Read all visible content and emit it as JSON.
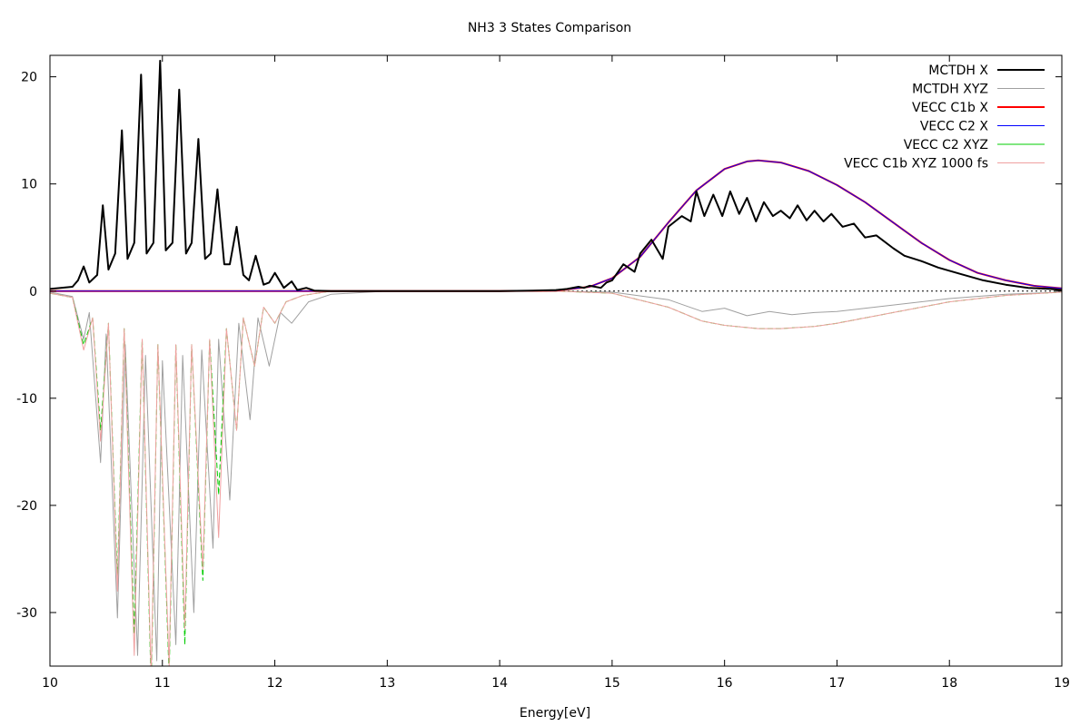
{
  "chart_data": {
    "type": "line",
    "title": "NH3 3 States Comparison",
    "xlabel": "Energy[eV]",
    "ylabel": "",
    "xlim": [
      10,
      19
    ],
    "ylim": [
      -35,
      22
    ],
    "xticks": [
      "10",
      "11",
      "12",
      "13",
      "14",
      "15",
      "16",
      "17",
      "18",
      "19"
    ],
    "yticks": [
      "20",
      "10",
      "0",
      "-10",
      "-20",
      "-30"
    ],
    "ytick_values": [
      20,
      10,
      0,
      -10,
      -20,
      -30
    ],
    "xtick_values": [
      10,
      11,
      12,
      13,
      14,
      15,
      16,
      17,
      18,
      19
    ],
    "legend_position": "top-right",
    "series": [
      {
        "name": "MCTDH X",
        "color": "#000000",
        "x": [
          10.0,
          10.2,
          10.25,
          10.3,
          10.35,
          10.42,
          10.47,
          10.52,
          10.58,
          10.64,
          10.69,
          10.75,
          10.81,
          10.86,
          10.92,
          10.98,
          11.03,
          11.09,
          11.15,
          11.21,
          11.26,
          11.32,
          11.38,
          11.43,
          11.49,
          11.55,
          11.6,
          11.66,
          11.72,
          11.77,
          11.83,
          11.9,
          11.95,
          12.0,
          12.08,
          12.15,
          12.2,
          12.28,
          12.35,
          12.5,
          13.0,
          14.0,
          14.3,
          14.5,
          14.6,
          14.7,
          14.75,
          14.8,
          14.9,
          14.95,
          15.0,
          15.1,
          15.2,
          15.25,
          15.35,
          15.45,
          15.5,
          15.62,
          15.7,
          15.75,
          15.82,
          15.9,
          15.98,
          16.05,
          16.13,
          16.2,
          16.28,
          16.35,
          16.43,
          16.5,
          16.58,
          16.65,
          16.73,
          16.8,
          16.88,
          16.95,
          17.05,
          17.15,
          17.25,
          17.35,
          17.5,
          17.6,
          17.75,
          17.9,
          18.1,
          18.3,
          18.5,
          18.7,
          18.9,
          19.0
        ],
        "y": [
          0.2,
          0.4,
          1.0,
          2.3,
          0.8,
          1.5,
          8.0,
          2.0,
          3.5,
          15.0,
          3.0,
          4.5,
          20.2,
          3.5,
          4.5,
          21.5,
          3.8,
          4.5,
          18.8,
          3.5,
          4.5,
          14.2,
          3.0,
          3.5,
          9.5,
          2.5,
          2.5,
          6.0,
          1.5,
          1.0,
          3.3,
          0.6,
          0.8,
          1.7,
          0.3,
          0.9,
          0.1,
          0.3,
          0.05,
          0.0,
          0.0,
          0.0,
          0.05,
          0.1,
          0.2,
          0.4,
          0.3,
          0.5,
          0.3,
          0.8,
          1.0,
          2.5,
          1.8,
          3.5,
          4.8,
          3.0,
          6.0,
          7.0,
          6.5,
          9.3,
          7.0,
          9.0,
          7.0,
          9.3,
          7.2,
          8.7,
          6.5,
          8.3,
          7.0,
          7.5,
          6.8,
          8.0,
          6.6,
          7.5,
          6.5,
          7.2,
          6.0,
          6.3,
          5.0,
          5.2,
          4.0,
          3.3,
          2.8,
          2.2,
          1.6,
          1.0,
          0.6,
          0.3,
          0.2,
          0.1
        ]
      },
      {
        "name": "MCTDH XYZ",
        "color": "#a0a0a0",
        "x": [
          10.0,
          10.2,
          10.3,
          10.35,
          10.45,
          10.5,
          10.6,
          10.67,
          10.78,
          10.85,
          10.95,
          11.0,
          11.12,
          11.18,
          11.28,
          11.35,
          11.45,
          11.5,
          11.6,
          11.68,
          11.78,
          11.85,
          11.95,
          12.05,
          12.15,
          12.3,
          12.5,
          13.0,
          14.5,
          15.0,
          15.5,
          15.8,
          16.0,
          16.2,
          16.4,
          16.6,
          16.8,
          17.0,
          17.5,
          18.0,
          18.5,
          19.0
        ],
        "y": [
          -0.1,
          -0.5,
          -4.5,
          -2.0,
          -16.0,
          -4.0,
          -30.5,
          -5.0,
          -34.0,
          -6.0,
          -34.5,
          -6.5,
          -33.0,
          -6.0,
          -30.0,
          -5.5,
          -24.0,
          -4.5,
          -19.5,
          -3.0,
          -12.0,
          -2.5,
          -7.0,
          -2.0,
          -3.0,
          -1.0,
          -0.3,
          0.0,
          0.0,
          -0.1,
          -0.8,
          -1.9,
          -1.6,
          -2.3,
          -1.9,
          -2.2,
          -2.0,
          -1.9,
          -1.3,
          -0.7,
          -0.3,
          -0.1
        ]
      },
      {
        "name": "VECC C1b X",
        "color": "#ff0000",
        "x": [
          10.0,
          12.0,
          13.0,
          14.0,
          14.5,
          14.8,
          15.0,
          15.25,
          15.5,
          15.75,
          16.0,
          16.2,
          16.3,
          16.5,
          16.75,
          17.0,
          17.25,
          17.5,
          17.75,
          18.0,
          18.25,
          18.5,
          18.75,
          19.0
        ],
        "y": [
          0.0,
          0.0,
          0.0,
          0.0,
          0.05,
          0.4,
          1.2,
          3.2,
          6.4,
          9.4,
          11.4,
          12.1,
          12.2,
          12.0,
          11.2,
          9.9,
          8.3,
          6.4,
          4.5,
          2.9,
          1.7,
          1.0,
          0.5,
          0.25
        ]
      },
      {
        "name": "VECC C2 X",
        "color": "#0000ff",
        "x": [
          10.0,
          12.0,
          13.0,
          14.0,
          14.5,
          14.8,
          15.0,
          15.25,
          15.5,
          15.75,
          16.0,
          16.2,
          16.3,
          16.5,
          16.75,
          17.0,
          17.25,
          17.5,
          17.75,
          18.0,
          18.25,
          18.5,
          18.75,
          19.0
        ],
        "y": [
          0.0,
          0.0,
          0.0,
          0.0,
          0.05,
          0.4,
          1.2,
          3.2,
          6.4,
          9.4,
          11.4,
          12.1,
          12.2,
          12.0,
          11.2,
          9.9,
          8.3,
          6.4,
          4.5,
          2.9,
          1.7,
          1.0,
          0.5,
          0.25
        ]
      },
      {
        "name": "VECC C2 XYZ",
        "color": "#00cc00",
        "x": [
          10.0,
          10.2,
          10.3,
          10.38,
          10.45,
          10.52,
          10.6,
          10.66,
          10.75,
          10.82,
          10.9,
          10.96,
          11.06,
          11.12,
          11.2,
          11.26,
          11.36,
          11.42,
          11.5,
          11.57,
          11.66,
          11.72,
          11.82,
          11.9,
          12.0,
          12.1,
          12.25,
          12.5,
          13.0,
          14.5,
          15.0,
          15.5,
          15.8,
          16.0,
          16.3,
          16.5,
          16.8,
          17.0,
          17.5,
          18.0,
          18.5,
          19.0
        ],
        "y": [
          -0.2,
          -0.6,
          -5.0,
          -2.5,
          -13.0,
          -3.0,
          -27.0,
          -3.5,
          -32.0,
          -4.5,
          -37.0,
          -5.0,
          -36.0,
          -5.0,
          -33.0,
          -5.0,
          -27.0,
          -4.5,
          -19.0,
          -3.5,
          -13.0,
          -2.5,
          -7.0,
          -1.5,
          -3.0,
          -1.0,
          -0.4,
          0.0,
          0.0,
          0.0,
          -0.2,
          -1.5,
          -2.8,
          -3.2,
          -3.5,
          -3.5,
          -3.3,
          -3.0,
          -2.0,
          -1.0,
          -0.4,
          -0.1
        ]
      },
      {
        "name": "VECC C1b XYZ 1000 fs",
        "color": "#f0a0a0",
        "x": [
          10.0,
          10.2,
          10.3,
          10.38,
          10.45,
          10.52,
          10.6,
          10.66,
          10.75,
          10.82,
          10.9,
          10.96,
          11.06,
          11.12,
          11.2,
          11.26,
          11.36,
          11.42,
          11.5,
          11.57,
          11.66,
          11.72,
          11.82,
          11.9,
          12.0,
          12.1,
          12.25,
          12.5,
          13.0,
          14.5,
          15.0,
          15.5,
          15.8,
          16.0,
          16.3,
          16.5,
          16.8,
          17.0,
          17.5,
          18.0,
          18.5,
          19.0
        ],
        "y": [
          -0.2,
          -0.6,
          -5.5,
          -2.5,
          -14.0,
          -3.0,
          -28.0,
          -3.5,
          -34.0,
          -4.5,
          -36.0,
          -5.0,
          -35.0,
          -5.0,
          -31.5,
          -5.0,
          -26.0,
          -4.5,
          -23.0,
          -3.5,
          -13.0,
          -2.5,
          -7.0,
          -1.5,
          -3.0,
          -1.0,
          -0.4,
          0.0,
          0.0,
          0.0,
          -0.2,
          -1.5,
          -2.8,
          -3.2,
          -3.5,
          -3.5,
          -3.3,
          -3.0,
          -2.0,
          -1.0,
          -0.4,
          -0.1
        ]
      }
    ]
  }
}
